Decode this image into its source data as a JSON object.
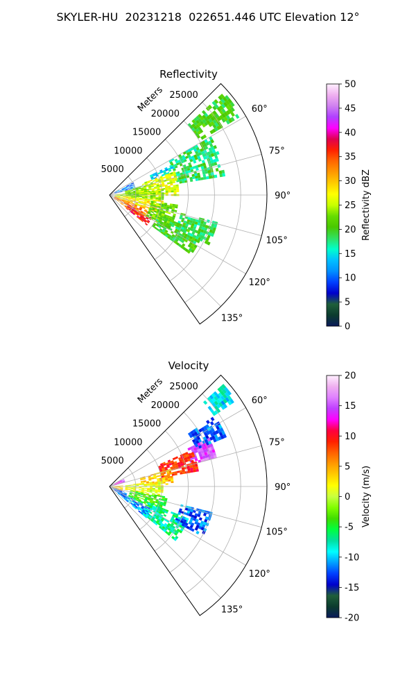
{
  "suptitle": "SKYLER-HU  20231218  022651.446 UTC Elevation 12°",
  "colors": {
    "grid": "#b0b0b0",
    "reflectivity_stops": [
      "#0a1a5a",
      "#0b3b2e",
      "#1f5f3a",
      "#0000cc",
      "#0040ff",
      "#0090ff",
      "#00c0ff",
      "#00ffcc",
      "#30e060",
      "#49c800",
      "#66dd00",
      "#c8ff00",
      "#ffff00",
      "#ffcc00",
      "#ff9900",
      "#ff6600",
      "#ff2000",
      "#e00050",
      "#ff00ff",
      "#b040ff",
      "#d080f0",
      "#f0b0f0",
      "#fff0ff"
    ],
    "velocity_stops": [
      "#0a1a5a",
      "#0b3b2e",
      "#1f5f3a",
      "#0000cc",
      "#0040ff",
      "#00a0ff",
      "#00ffff",
      "#00e0a0",
      "#00ff40",
      "#40dd00",
      "#80ff00",
      "#c8ff40",
      "#ffff00",
      "#ffcc00",
      "#ff9900",
      "#ff6000",
      "#ff2000",
      "#ff0040",
      "#ff00ff",
      "#c040ff",
      "#e080ff",
      "#f0b0f0",
      "#fff0ff"
    ]
  },
  "chart_data": [
    {
      "type": "heatmap",
      "projection": "polar-sector",
      "title": "Reflectivity",
      "radial_label": "Meters",
      "radial_ticks": [
        5000,
        10000,
        15000,
        20000,
        25000
      ],
      "radial_tick_labels": [
        "5000",
        "10000",
        "15000",
        "20000",
        "25000"
      ],
      "rmax": 30000,
      "theta_range_deg": [
        45,
        145
      ],
      "theta_ticks": [
        60,
        75,
        90,
        105,
        120,
        135
      ],
      "theta_tick_labels": [
        "60°",
        "75°",
        "90°",
        "105°",
        "120°",
        "135°"
      ],
      "grid": true,
      "colorbar": {
        "label": "Reflectivity dBZ",
        "min": 0,
        "max": 50,
        "ticks": [
          0,
          5,
          10,
          15,
          20,
          25,
          30,
          35,
          40,
          45,
          50
        ]
      },
      "echoes": [
        {
          "az": [
            48,
            58
          ],
          "r": [
            20000,
            29000
          ],
          "value": 20
        },
        {
          "az": [
            60,
            80
          ],
          "r": [
            13000,
            22000
          ],
          "value": 18
        },
        {
          "az": [
            64,
            70
          ],
          "r": [
            8500,
            13000
          ],
          "value": 14
        },
        {
          "az": [
            70,
            90
          ],
          "r": [
            6000,
            13000
          ],
          "value": 26
        },
        {
          "az": [
            84,
            96
          ],
          "r": [
            1000,
            10000
          ],
          "value": 24
        },
        {
          "az": [
            96,
            110
          ],
          "r": [
            1000,
            10000
          ],
          "value": 28
        },
        {
          "az": [
            110,
            126
          ],
          "r": [
            1000,
            8000
          ],
          "value": 33
        },
        {
          "az": [
            118,
            128
          ],
          "r": [
            4000,
            9000
          ],
          "value": 37
        },
        {
          "az": [
            98,
            120
          ],
          "r": [
            8000,
            13000
          ],
          "value": 22
        },
        {
          "az": [
            112,
            126
          ],
          "r": [
            10000,
            19000
          ],
          "value": 20
        },
        {
          "az": [
            104,
            116
          ],
          "r": [
            14000,
            21000
          ],
          "value": 19
        },
        {
          "az": [
            62,
            76
          ],
          "r": [
            1000,
            5000
          ],
          "value": 11
        },
        {
          "az": [
            74,
            90
          ],
          "r": [
            3000,
            7000
          ],
          "value": 23
        }
      ]
    },
    {
      "type": "heatmap",
      "projection": "polar-sector",
      "title": "Velocity",
      "radial_label": "Meters",
      "radial_ticks": [
        5000,
        10000,
        15000,
        20000,
        25000
      ],
      "radial_tick_labels": [
        "5000",
        "10000",
        "15000",
        "20000",
        "25000"
      ],
      "rmax": 30000,
      "theta_range_deg": [
        45,
        145
      ],
      "theta_ticks": [
        60,
        75,
        90,
        105,
        120,
        135
      ],
      "theta_tick_labels": [
        "60°",
        "75°",
        "90°",
        "105°",
        "120°",
        "135°"
      ],
      "grid": true,
      "colorbar": {
        "label": "Velocity (m/s)",
        "min": -20,
        "max": 20,
        "ticks": [
          -20,
          -15,
          -10,
          -5,
          0,
          5,
          10,
          15,
          20
        ]
      },
      "echoes": [
        {
          "az": [
            48,
            56
          ],
          "r": [
            24000,
            29000
          ],
          "value": -9
        },
        {
          "az": [
            56,
            66
          ],
          "r": [
            18000,
            24000
          ],
          "value": -12
        },
        {
          "az": [
            64,
            74
          ],
          "r": [
            16000,
            21000
          ],
          "value": 15
        },
        {
          "az": [
            66,
            80
          ],
          "r": [
            10000,
            17000
          ],
          "value": 9
        },
        {
          "az": [
            74,
            88
          ],
          "r": [
            6000,
            12000
          ],
          "value": 4
        },
        {
          "az": [
            84,
            100
          ],
          "r": [
            3000,
            10000
          ],
          "value": 1
        },
        {
          "az": [
            100,
            116
          ],
          "r": [
            4000,
            11000
          ],
          "value": -4
        },
        {
          "az": [
            112,
            128
          ],
          "r": [
            8000,
            16000
          ],
          "value": -7
        },
        {
          "az": [
            118,
            130
          ],
          "r": [
            2000,
            9000
          ],
          "value": -11
        },
        {
          "az": [
            104,
            118
          ],
          "r": [
            14000,
            20000
          ],
          "value": -12
        },
        {
          "az": [
            60,
            74
          ],
          "r": [
            500,
            3000
          ],
          "value": 14
        },
        {
          "az": [
            86,
            110
          ],
          "r": [
            500,
            2500
          ],
          "value": 4
        },
        {
          "az": [
            110,
            126
          ],
          "r": [
            500,
            3500
          ],
          "value": -12
        }
      ]
    }
  ]
}
